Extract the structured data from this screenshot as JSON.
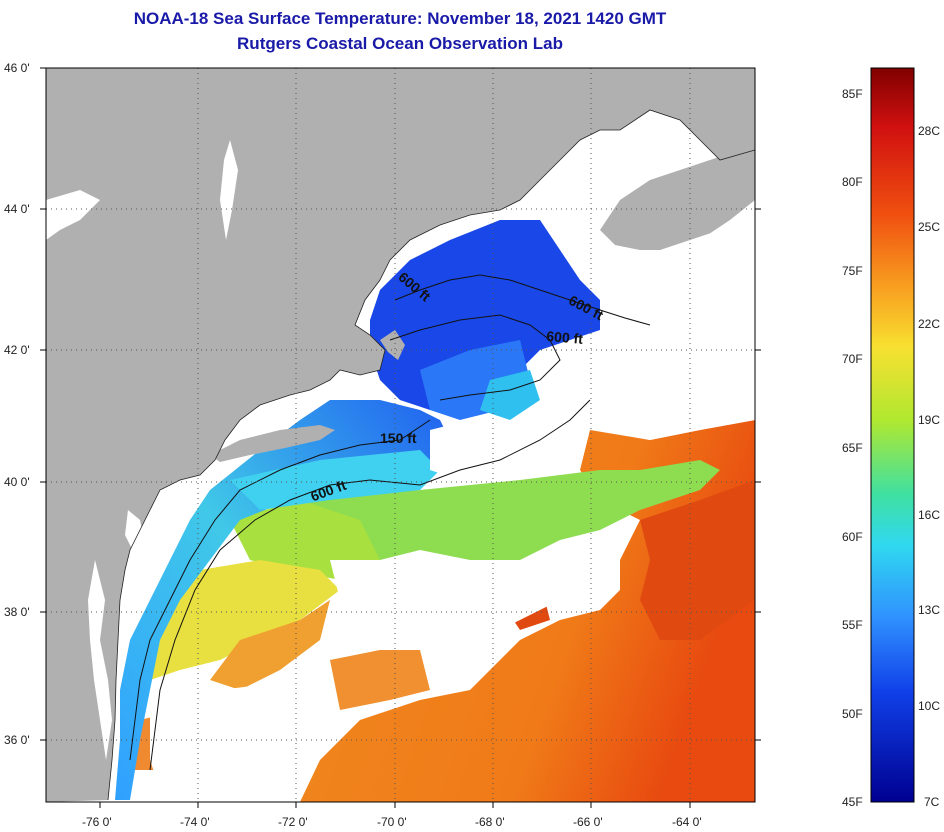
{
  "title": "NOAA-18 Sea Surface Temperature:  November 18, 2021 1420 GMT",
  "subtitle": "Rutgers Coastal Ocean Observation Lab",
  "map": {
    "lon_range": [
      -77,
      -62.5
    ],
    "lat_range": [
      35,
      46
    ],
    "lat_labels": [
      "46 0'",
      "44 0'",
      "42 0'",
      "40 0'",
      "38 0'",
      "36 0'"
    ],
    "lon_labels": [
      "-76 0'",
      "-74 0'",
      "-72 0'",
      "-70 0'",
      "-68 0'",
      "-66 0'",
      "-64 0'"
    ],
    "contour_labels": [
      "600 ft",
      "600 ft",
      "600 ft",
      "150 ft",
      "600 ft"
    ]
  },
  "colorbar": {
    "fahrenheit": [
      "85F",
      "80F",
      "75F",
      "70F",
      "65F",
      "60F",
      "55F",
      "50F",
      "45F"
    ],
    "celsius": [
      "28C",
      "25C",
      "22C",
      "19C",
      "16C",
      "13C",
      "10C",
      "7C"
    ]
  },
  "colors": {
    "land": "#b0b0b0",
    "cloud": "#ffffff",
    "title": "#1a1aa8",
    "sst_cold": "#1040e0",
    "sst_cool": "#40b0ff",
    "sst_mild": "#70e070",
    "sst_warm": "#f0a030",
    "sst_hot": "#e85010"
  }
}
